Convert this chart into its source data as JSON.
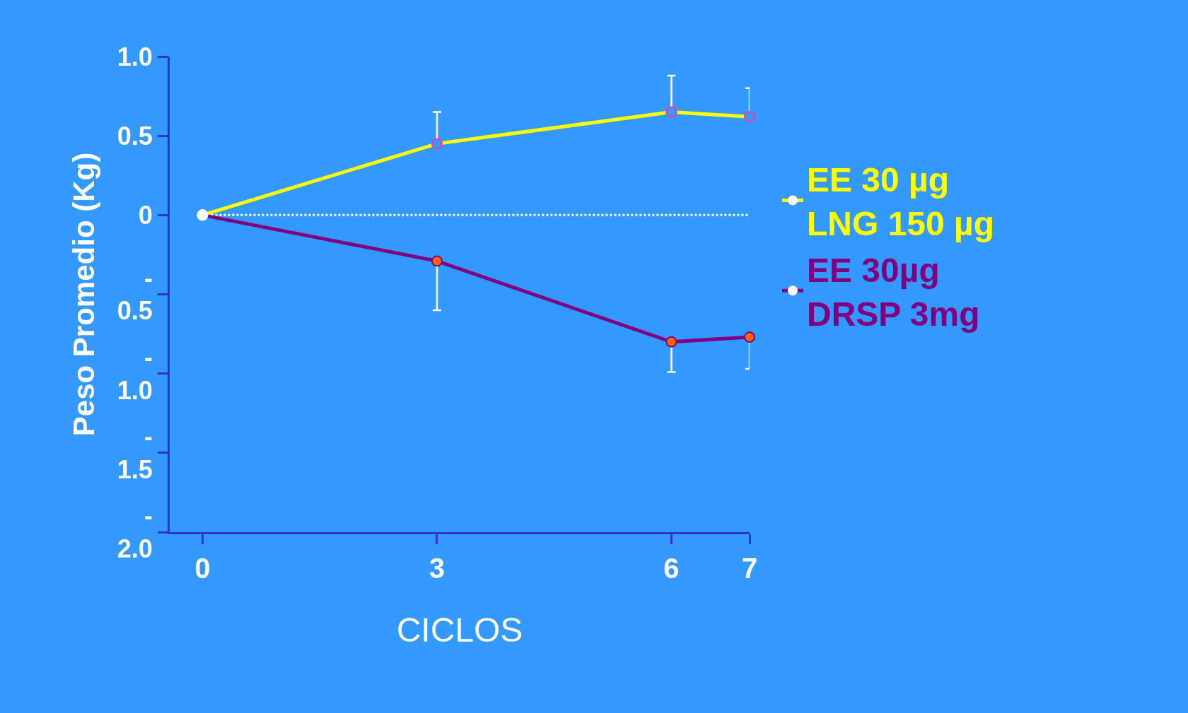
{
  "chart_data": {
    "type": "line",
    "xlabel": "CICLOS",
    "ylabel": "Peso Promedio (Kg)",
    "x": [
      0,
      3,
      6,
      7
    ],
    "xlim": [
      -0.42,
      7
    ],
    "xticks": [
      0,
      3,
      6,
      7
    ],
    "ylim": [
      -2.0,
      1.0
    ],
    "yticks": [
      {
        "value": 1.0,
        "label": "1.0"
      },
      0.5,
      0,
      {
        "value": -0.5,
        "label": "-\n0.5"
      },
      {
        "value": -1.0,
        "label": "-\n1.0"
      },
      {
        "value": -1.5,
        "label": "-\n1.5"
      },
      {
        "value": -2.0,
        "label": "-\n2.0"
      }
    ],
    "series": [
      {
        "name": "EE 30 µg\nLNG 150 µg",
        "color": "#ffff00",
        "colors": [
          "#ffffff",
          "#3399ff",
          "#3399ff",
          "#3399ff"
        ],
        "values": [
          0,
          0.45,
          0.65,
          0.62
        ],
        "errors": [
          null,
          [
            0.45,
            0.65
          ],
          [
            0.65,
            0.88
          ],
          [
            0.62,
            0.8
          ]
        ]
      },
      {
        "name": "EE 30µg\nDRSP 3mg",
        "color": "#800080",
        "colors": [
          "#ffffff",
          "#ff6600",
          "#ff6600",
          "#ff6600"
        ],
        "values": [
          0,
          -0.29,
          -0.8,
          -0.77
        ],
        "errors": [
          null,
          [
            -0.6,
            -0.29
          ],
          [
            -0.99,
            -0.8
          ],
          [
            -0.97,
            -0.77
          ]
        ]
      }
    ],
    "ref_lines": [
      {
        "axis": "y",
        "value": 0,
        "color": "#ffffff",
        "line_style": "dotted"
      }
    ],
    "marker": "circle",
    "line_style": "solid",
    "grid": false,
    "legend": "right"
  }
}
